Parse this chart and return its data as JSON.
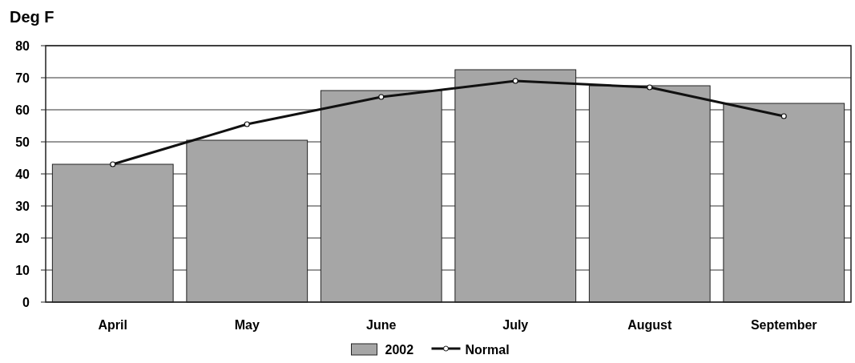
{
  "chart_data": {
    "type": "bar",
    "ylabel": "Deg F",
    "categories": [
      "April",
      "May",
      "June",
      "July",
      "August",
      "September"
    ],
    "series": [
      {
        "name": "2002",
        "color": "#a6a6a6",
        "values": [
          43,
          50.5,
          66,
          72.5,
          67.5,
          62
        ]
      },
      {
        "name": "Normal",
        "type": "line",
        "color": "#111111",
        "marker": "circle",
        "values": [
          43,
          55.5,
          64,
          69,
          67,
          58
        ]
      }
    ],
    "ylim": [
      0,
      80
    ],
    "yticks": [
      0,
      10,
      20,
      30,
      40,
      50,
      60,
      70,
      80
    ],
    "grid": "y",
    "legend": "bottom"
  }
}
